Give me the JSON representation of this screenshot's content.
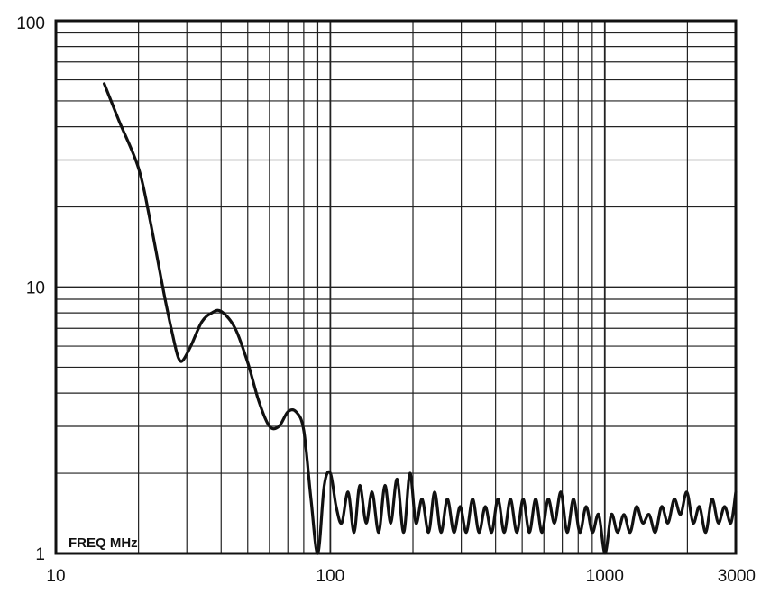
{
  "chart_data": {
    "type": "line",
    "title": "",
    "xlabel": "FREQ MHz",
    "ylabel": "",
    "x_scale": "log",
    "y_scale": "log",
    "xlim": [
      10,
      3000
    ],
    "ylim": [
      1,
      100
    ],
    "grid": true,
    "x_tick_labels": [
      {
        "value": 10,
        "label": "10"
      },
      {
        "value": 100,
        "label": "100"
      },
      {
        "value": 1000,
        "label": "1000"
      },
      {
        "value": 3000,
        "label": "3000"
      }
    ],
    "y_tick_labels": [
      {
        "value": 1,
        "label": "1"
      },
      {
        "value": 10,
        "label": "10"
      },
      {
        "value": 100,
        "label": "100"
      }
    ],
    "series": [
      {
        "color": "#111111",
        "x": [
          15,
          17,
          20,
          22,
          25,
          27,
          28,
          29,
          31,
          34,
          37,
          40,
          45,
          50,
          55,
          60,
          65,
          70,
          75,
          80,
          85,
          90,
          95,
          100,
          105,
          110,
          116,
          122,
          128,
          135,
          142,
          150,
          158,
          166,
          175,
          185,
          195,
          205,
          216,
          228,
          240,
          253,
          267,
          282,
          297,
          313,
          330,
          348,
          367,
          387,
          408,
          430,
          453,
          478,
          504,
          531,
          560,
          590,
          622,
          656,
          692,
          729,
          769,
          811,
          855,
          901,
          950,
          1002,
          1056,
          1113,
          1174,
          1237,
          1304,
          1375,
          1450,
          1528,
          1611,
          1699,
          1791,
          1888,
          1990,
          2098,
          2212,
          2332,
          2458,
          2592,
          2732,
          2880,
          3000
        ],
        "y": [
          58,
          42,
          28,
          18,
          9,
          6.2,
          5.4,
          5.3,
          6,
          7.4,
          8,
          8.1,
          7,
          5.2,
          3.7,
          3.0,
          3.0,
          3.4,
          3.4,
          2.9,
          1.6,
          1.0,
          1.8,
          2.0,
          1.5,
          1.3,
          1.7,
          1.2,
          1.8,
          1.3,
          1.7,
          1.2,
          1.8,
          1.3,
          1.9,
          1.2,
          2.0,
          1.3,
          1.6,
          1.2,
          1.7,
          1.2,
          1.6,
          1.2,
          1.5,
          1.2,
          1.6,
          1.2,
          1.5,
          1.2,
          1.6,
          1.2,
          1.6,
          1.2,
          1.6,
          1.2,
          1.6,
          1.2,
          1.6,
          1.3,
          1.7,
          1.2,
          1.6,
          1.2,
          1.5,
          1.2,
          1.4,
          1.0,
          1.4,
          1.2,
          1.4,
          1.2,
          1.5,
          1.3,
          1.4,
          1.2,
          1.5,
          1.3,
          1.6,
          1.4,
          1.7,
          1.3,
          1.5,
          1.2,
          1.6,
          1.3,
          1.5,
          1.3,
          1.7
        ]
      }
    ]
  }
}
